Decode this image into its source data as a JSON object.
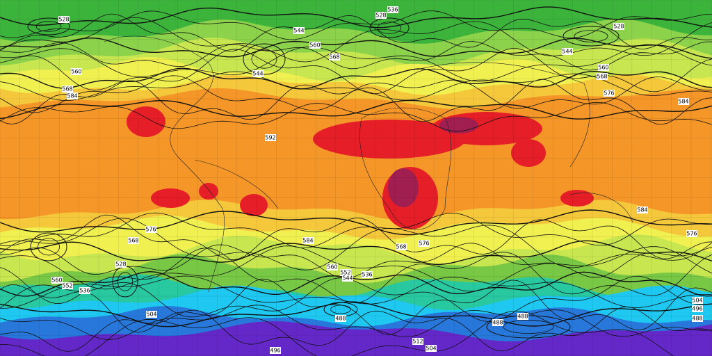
{
  "map": {
    "contour_labels": [
      "528",
      "528",
      "536",
      "544",
      "560",
      "568",
      "544",
      "560",
      "568",
      "584",
      "592",
      "560",
      "568",
      "576",
      "584",
      "528",
      "544",
      "576",
      "568",
      "584",
      "568",
      "576",
      "584",
      "576",
      "560",
      "552",
      "544",
      "536",
      "528",
      "560",
      "552",
      "536",
      "504",
      "488",
      "488",
      "488",
      "512",
      "504",
      "496",
      "496",
      "488",
      "504"
    ]
  }
}
